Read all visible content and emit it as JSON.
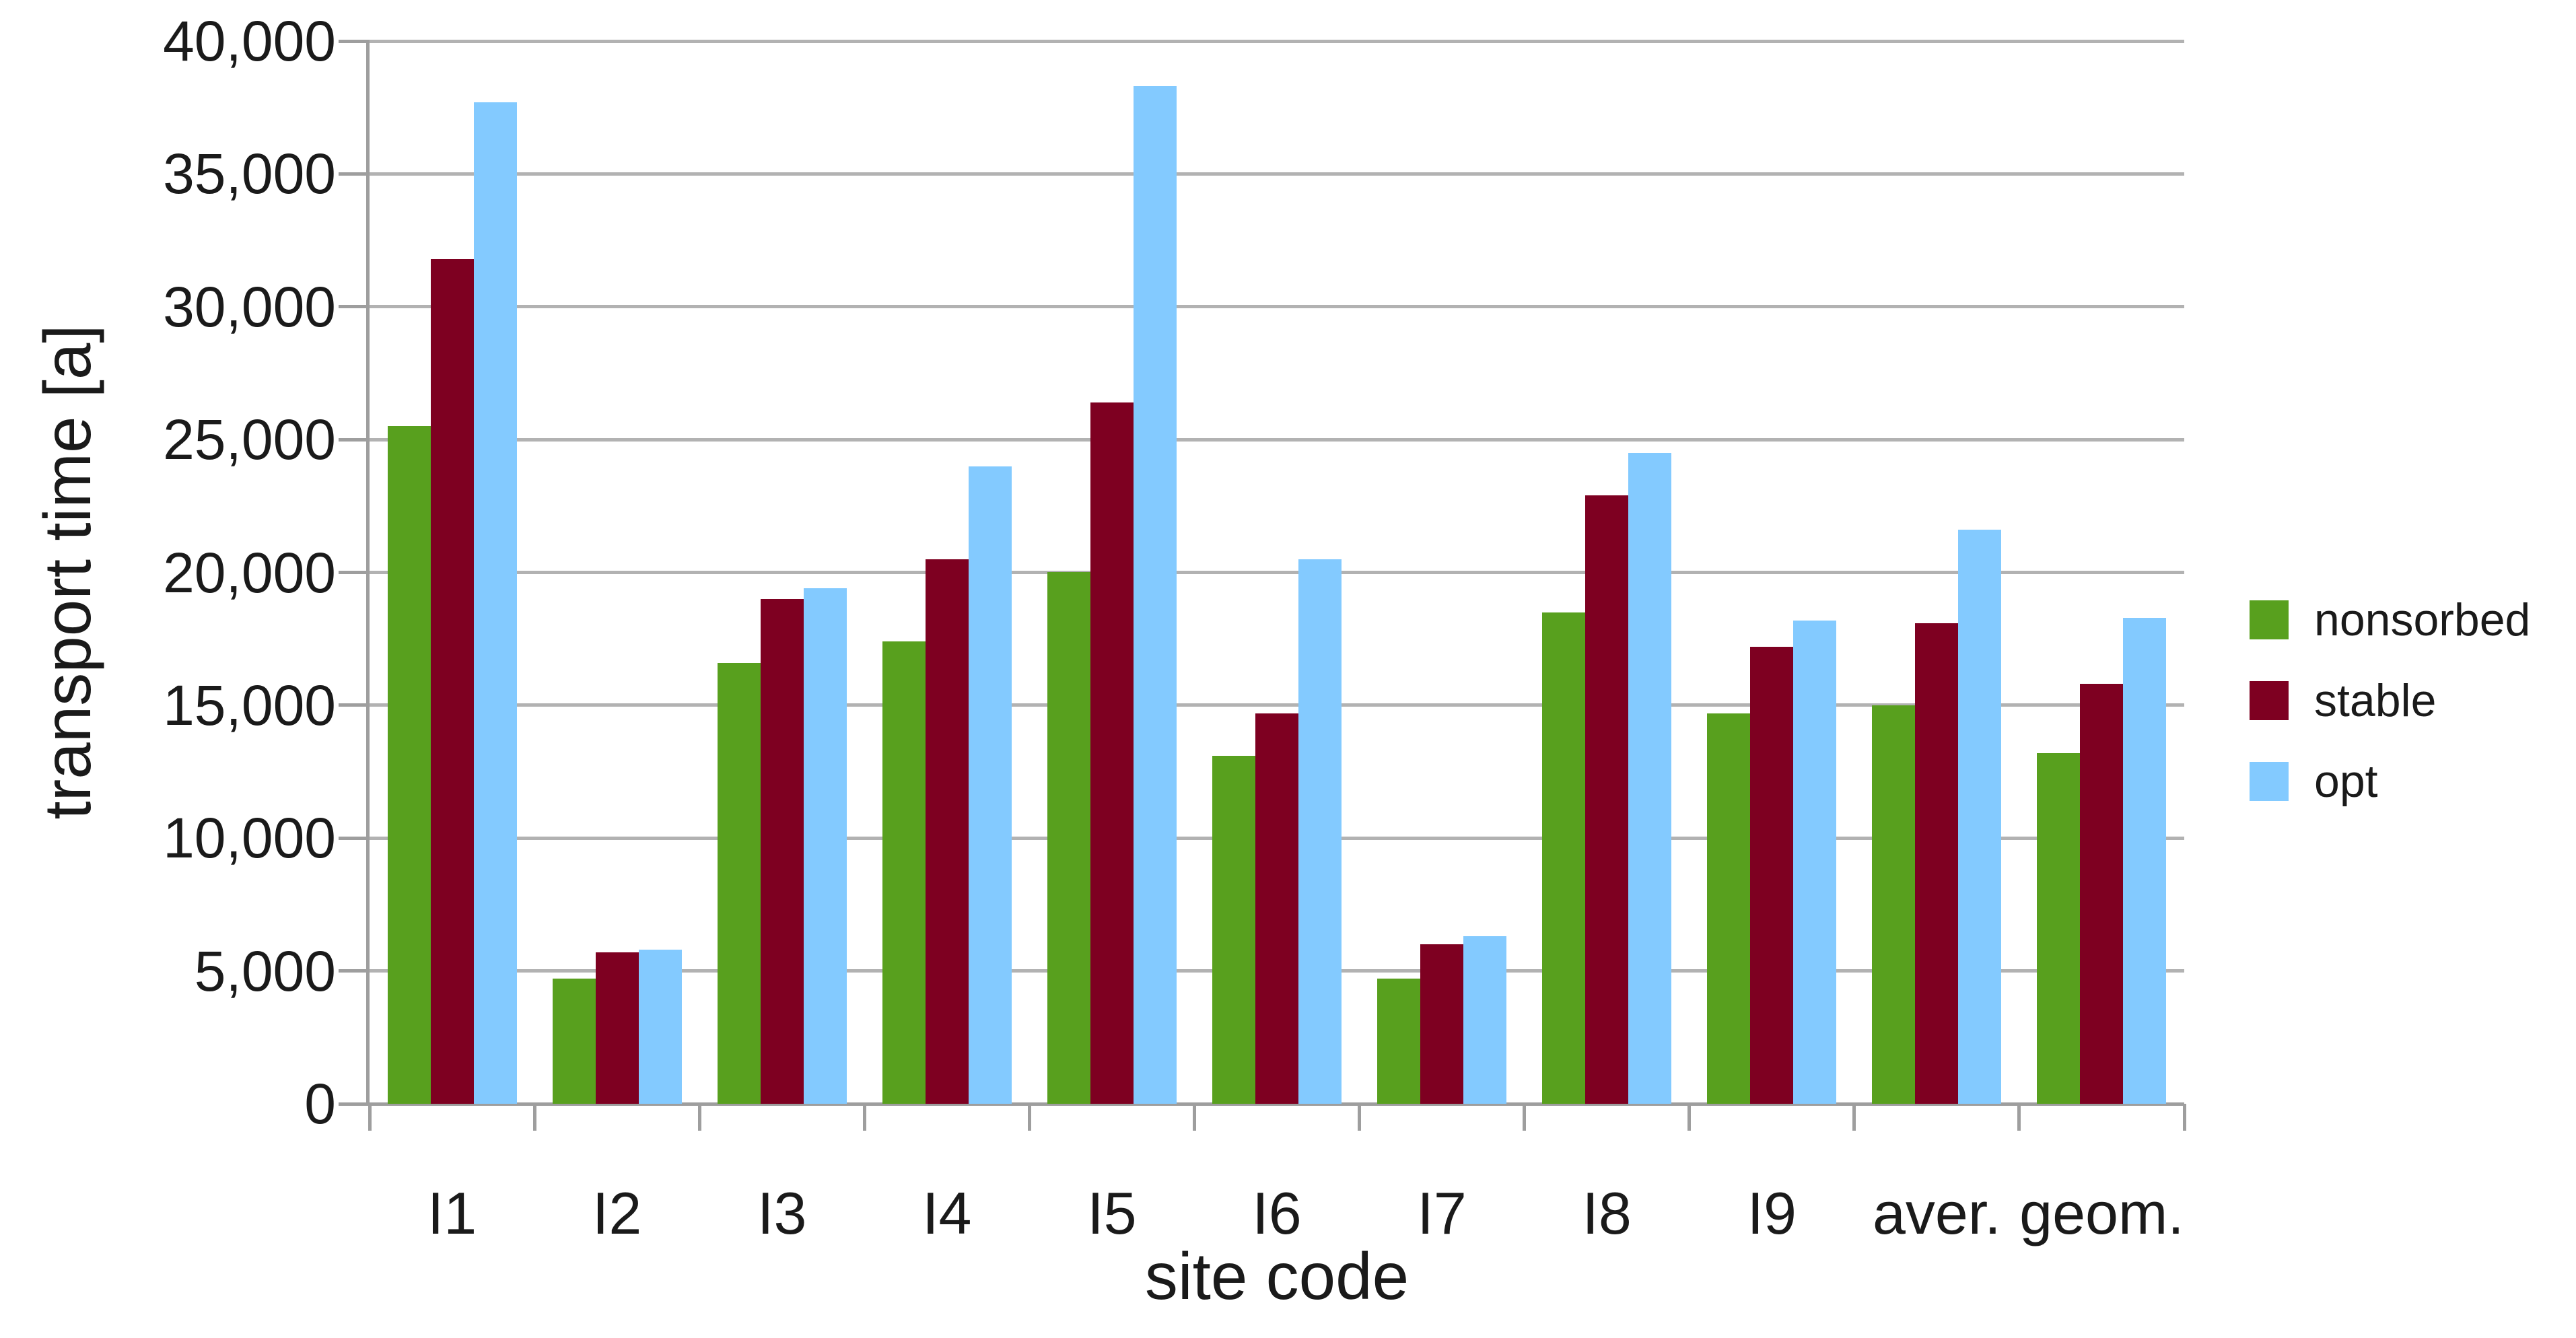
{
  "chart_data": {
    "type": "bar",
    "title": "",
    "xlabel": "site code",
    "ylabel": "transport time [a]",
    "categories": [
      "I1",
      "I2",
      "I3",
      "I4",
      "I5",
      "I6",
      "I7",
      "I8",
      "I9",
      "aver.",
      "geom."
    ],
    "series": [
      {
        "name": "nonsorbed",
        "color": "#58a01e",
        "values": [
          25500,
          4700,
          16600,
          17400,
          20000,
          13100,
          4700,
          18500,
          14700,
          15000,
          13200
        ]
      },
      {
        "name": "stable",
        "color": "#7e0021",
        "values": [
          31800,
          5700,
          19000,
          20500,
          26400,
          14700,
          6000,
          22900,
          17200,
          18100,
          15800
        ]
      },
      {
        "name": "opt",
        "color": "#83caff",
        "values": [
          37700,
          5800,
          19400,
          24000,
          38300,
          20500,
          6300,
          24500,
          18200,
          21600,
          18300
        ]
      }
    ],
    "ylim": [
      0,
      40000
    ],
    "ytick_step": 5000,
    "ytick_labels": [
      "0",
      "5,000",
      "10,000",
      "15,000",
      "20,000",
      "25,000",
      "30,000",
      "35,000",
      "40,000"
    ],
    "grid": true,
    "legend_position": "right"
  },
  "colors": {
    "gridline": "#b2b2b2",
    "axis": "#9e9e9e",
    "text": "#1a1a1a",
    "background": "#ffffff"
  }
}
